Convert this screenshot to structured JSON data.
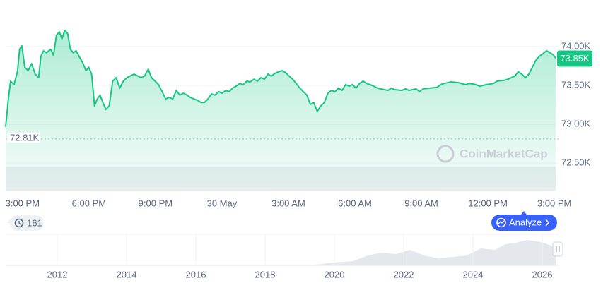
{
  "chart_data": {
    "type": "line",
    "x": [
      -0.76,
      -0.64,
      -0.54,
      -0.38,
      -0.22,
      -0.13,
      -0.03,
      0.1,
      0.25,
      0.41,
      0.57,
      0.73,
      0.83,
      0.95,
      1.08,
      1.27,
      1.4,
      1.53,
      1.66,
      1.78,
      1.91,
      2.04,
      2.16,
      2.29,
      2.42,
      2.55,
      2.74,
      2.86,
      2.99,
      3.12,
      3.25,
      3.37,
      3.5,
      3.63,
      3.76,
      3.91,
      4.07,
      4.23,
      4.39,
      4.55,
      4.71,
      5.03,
      5.35,
      5.51,
      5.67,
      5.82,
      5.98,
      6.14,
      6.3,
      6.46,
      6.62,
      6.78,
      6.94,
      7.1,
      7.26,
      7.42,
      7.57,
      7.73,
      7.89,
      8.05,
      8.21,
      8.37,
      8.53,
      8.69,
      8.85,
      9.01,
      9.17,
      9.33,
      9.48,
      9.64,
      9.8,
      9.96,
      10.12,
      10.28,
      10.44,
      10.6,
      10.76,
      10.92,
      11.08,
      11.23,
      11.39,
      11.55,
      11.71,
      11.87,
      12.03,
      12.19,
      12.35,
      12.51,
      12.67,
      12.83,
      12.99,
      13.14,
      13.3,
      13.46,
      13.62,
      13.78,
      13.94,
      14.1,
      14.26,
      14.42,
      14.58,
      14.74,
      14.89,
      15.05,
      15.21,
      15.37,
      15.53,
      15.69,
      15.85,
      16.01,
      16.17,
      16.49,
      16.65,
      16.8,
      17.12,
      17.28,
      17.44,
      17.76,
      17.92,
      18.08,
      18.4,
      18.71,
      18.87,
      19.03,
      19.35,
      19.67,
      19.99,
      20.15,
      20.46,
      20.62,
      20.94,
      21.26,
      21.42,
      21.74,
      21.9,
      22.22,
      22.37,
      22.53,
      22.69,
      22.85,
      23.01,
      23.17,
      23.33,
      23.49,
      23.65,
      23.81,
      23.97,
      24.06
    ],
    "series": [
      {
        "color": "#16c784",
        "values": [
          72965,
          73325,
          73555,
          73510,
          73690,
          73965,
          74010,
          73735,
          73690,
          73780,
          73645,
          73600,
          73875,
          73945,
          73920,
          73965,
          73890,
          74145,
          74190,
          74100,
          74210,
          74165,
          73965,
          73920,
          73945,
          73875,
          73780,
          73690,
          73735,
          73645,
          73235,
          73325,
          73375,
          73280,
          73190,
          73235,
          73555,
          73600,
          73465,
          73555,
          73600,
          73645,
          73600,
          73620,
          73710,
          73600,
          73555,
          73510,
          73420,
          73325,
          73345,
          73325,
          73435,
          73375,
          73400,
          73375,
          73345,
          73325,
          73310,
          73280,
          73280,
          73325,
          73390,
          73375,
          73420,
          73400,
          73435,
          73420,
          73465,
          73490,
          73525,
          73510,
          73555,
          73545,
          73580,
          73555,
          73600,
          73580,
          73645,
          73620,
          73655,
          73675,
          73690,
          73665,
          73620,
          73580,
          73525,
          73465,
          73420,
          73375,
          73255,
          73280,
          73165,
          73235,
          73280,
          73400,
          73435,
          73420,
          73465,
          73435,
          73510,
          73490,
          73510,
          73465,
          73525,
          73555,
          73525,
          73510,
          73490,
          73465,
          73455,
          73435,
          73465,
          73445,
          73435,
          73455,
          73435,
          73455,
          73420,
          73455,
          73465,
          73475,
          73510,
          73525,
          73545,
          73535,
          73510,
          73525,
          73510,
          73490,
          73510,
          73525,
          73555,
          73565,
          73580,
          73620,
          73675,
          73645,
          73600,
          73645,
          73735,
          73825,
          73875,
          73910,
          73945,
          73920,
          73890,
          73850
        ]
      }
    ],
    "xlim": [
      -0.76,
      24.06
    ],
    "xticks": [
      {
        "value": 0,
        "label": "3:00 PM"
      },
      {
        "value": 3,
        "label": "6:00 PM"
      },
      {
        "value": 6,
        "label": "9:00 PM"
      },
      {
        "value": 9,
        "label": "30 May"
      },
      {
        "value": 12,
        "label": "3:00 AM"
      },
      {
        "value": 15,
        "label": "6:00 AM"
      },
      {
        "value": 18,
        "label": "9:00 AM"
      },
      {
        "value": 21,
        "label": "12:00 PM"
      },
      {
        "value": 24,
        "label": "3:00 PM"
      }
    ],
    "ylim": [
      72145,
      74509
    ],
    "yticks": [
      {
        "value": 72500,
        "label": "72.50K"
      },
      {
        "value": 73000,
        "label": "73.00K"
      },
      {
        "value": 73500,
        "label": "73.50K"
      },
      {
        "value": 74000,
        "label": "74.00K"
      }
    ],
    "grid": true,
    "reference_line": {
      "value": 72810,
      "label": "72.81K"
    },
    "last_price": {
      "value": 73850,
      "label": "73.85K"
    }
  },
  "watermark": "CoinMarketCap",
  "history_count": 161,
  "analyze_button": "Analyze",
  "navigator": {
    "years": [
      2012,
      2014,
      2016,
      2018,
      2020,
      2022,
      2024,
      2026
    ]
  }
}
